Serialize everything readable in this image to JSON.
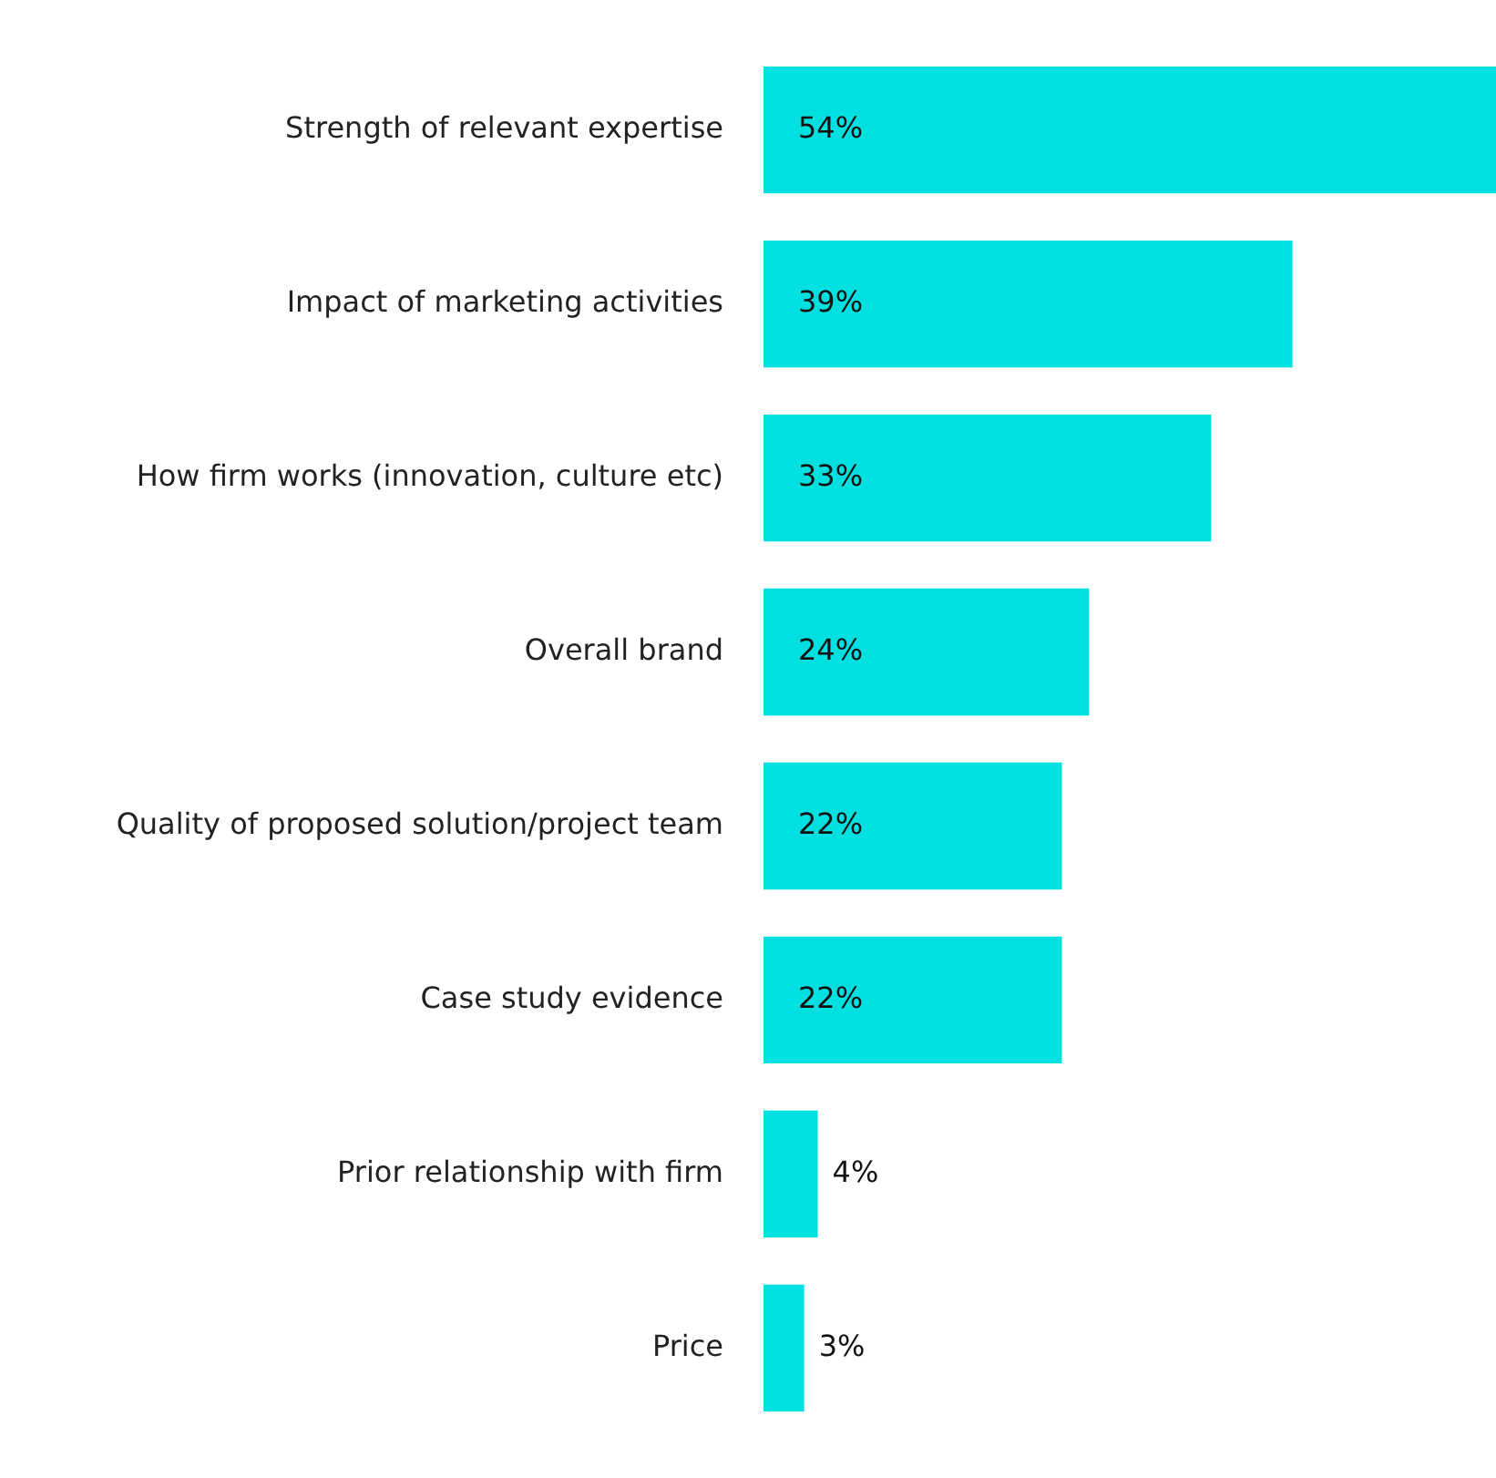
{
  "chart_data": {
    "type": "bar",
    "orientation": "horizontal",
    "categories": [
      "Strength of relevant expertise",
      "Impact of marketing activities",
      "How firm works (innovation, culture etc)",
      "Overall brand",
      "Quality of proposed solution/project team",
      "Case study evidence",
      "Prior relationship with firm",
      "Price"
    ],
    "values": [
      54,
      39,
      33,
      24,
      22,
      22,
      4,
      3
    ],
    "value_labels": [
      "54%",
      "39%",
      "33%",
      "24%",
      "22%",
      "22%",
      "4%",
      "3%"
    ],
    "color": "#00e0e0"
  }
}
